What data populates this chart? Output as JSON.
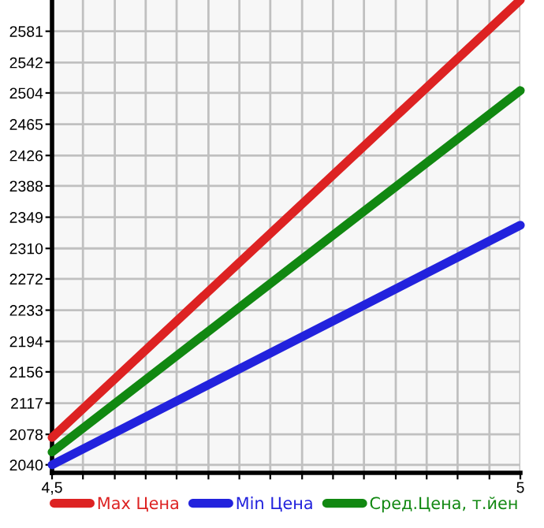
{
  "chart_data": {
    "type": "line",
    "x": [
      4.5,
      5
    ],
    "series": [
      {
        "name": "Max Цена",
        "color": "#dd2222",
        "values": [
          2074,
          2620
        ]
      },
      {
        "name": "Min Цена",
        "color": "#2222dd",
        "values": [
          2040,
          2339
        ]
      },
      {
        "name": "Сред.Цена, т.йен",
        "color": "#118811",
        "values": [
          2056,
          2507
        ]
      }
    ],
    "xlim": [
      4.5,
      5
    ],
    "xticks": [
      {
        "value": 4.5,
        "label": "4,5"
      },
      {
        "value": 4.533,
        "label": null
      },
      {
        "value": 4.567,
        "label": null
      },
      {
        "value": 4.6,
        "label": null
      },
      {
        "value": 4.633,
        "label": null
      },
      {
        "value": 4.667,
        "label": null
      },
      {
        "value": 4.7,
        "label": null
      },
      {
        "value": 4.733,
        "label": null
      },
      {
        "value": 4.767,
        "label": null
      },
      {
        "value": 4.8,
        "label": null
      },
      {
        "value": 4.833,
        "label": null
      },
      {
        "value": 4.867,
        "label": null
      },
      {
        "value": 4.9,
        "label": null
      },
      {
        "value": 4.933,
        "label": null
      },
      {
        "value": 4.967,
        "label": null
      },
      {
        "value": 5,
        "label": "5"
      }
    ],
    "ylim": [
      2030,
      2620
    ],
    "yticks": [
      2040,
      2078,
      2117,
      2156,
      2194,
      2233,
      2272,
      2310,
      2349,
      2388,
      2426,
      2465,
      2504,
      2542,
      2581
    ],
    "grid": true,
    "legend": "bottom",
    "marker": "none",
    "line_style": "solid"
  }
}
